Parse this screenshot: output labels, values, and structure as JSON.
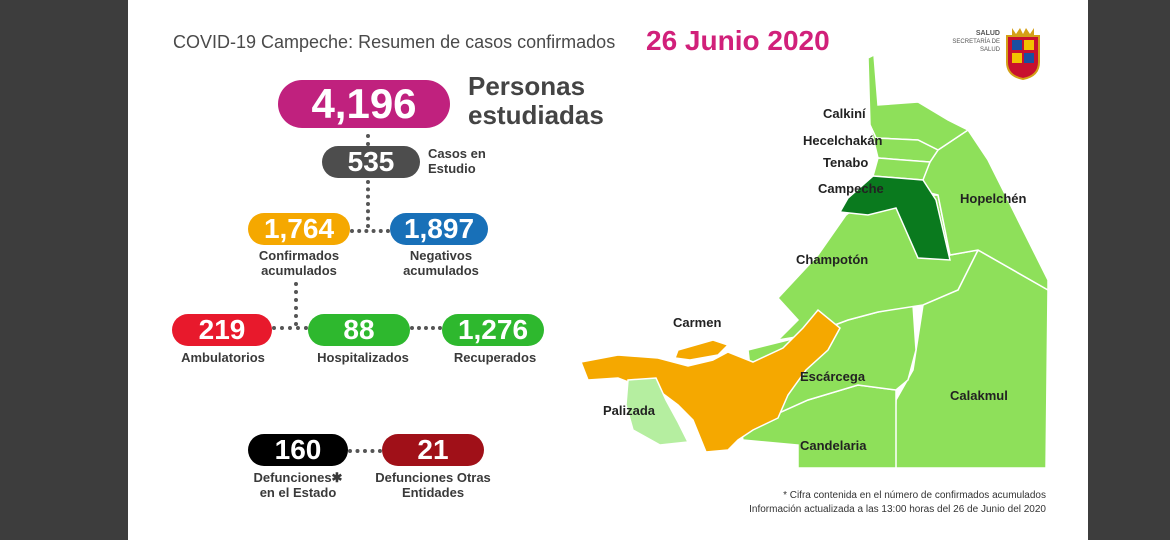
{
  "header": {
    "title": "COVID-19 Campeche: Resumen de casos confirmados",
    "date": "26 Junio 2020"
  },
  "logo": {
    "line1": "SALUD",
    "line2": "SECRETARÍA DE SALUD"
  },
  "stats": {
    "studied": {
      "value": "4,196",
      "label": "Personas estudiadas",
      "color": "#c0217e"
    },
    "in_study": {
      "value": "535",
      "label": "Casos en Estudio",
      "color": "#4d4d4d"
    },
    "confirmed": {
      "value": "1,764",
      "label": "Confirmados acumulados",
      "color": "#f5a800"
    },
    "negatives": {
      "value": "1,897",
      "label": "Negativos acumulados",
      "color": "#1870b8"
    },
    "ambulatory": {
      "value": "219",
      "label": "Ambulatorios",
      "color": "#e8192c"
    },
    "hospitalized": {
      "value": "88",
      "label": "Hospitalizados",
      "color": "#2eb82e"
    },
    "recovered": {
      "value": "1,276",
      "label": "Recuperados",
      "color": "#2eb82e"
    },
    "deaths_state": {
      "value": "160",
      "label": "Defunciones✱ en el Estado",
      "color": "#000000"
    },
    "deaths_other": {
      "value": "21",
      "label": "Defunciones Otras Entidades",
      "color": "#a01018"
    }
  },
  "map": {
    "municipalities": [
      "Calkiní",
      "Hecelchakán",
      "Tenabo",
      "Campeche",
      "Hopelchén",
      "Champotón",
      "Carmen",
      "Escárcega",
      "Palizada",
      "Calakmul",
      "Candelaria"
    ],
    "colors": {
      "light": "#8ee05a",
      "dark": "#0a7a1e",
      "orange": "#f5a800",
      "pale": "#b5eea0"
    }
  },
  "footnote": {
    "line1": "* Cifra contenida en el número de confirmados acumulados",
    "line2": "Información actualizada a las 13:00 horas del 26 de Junio del 2020"
  }
}
